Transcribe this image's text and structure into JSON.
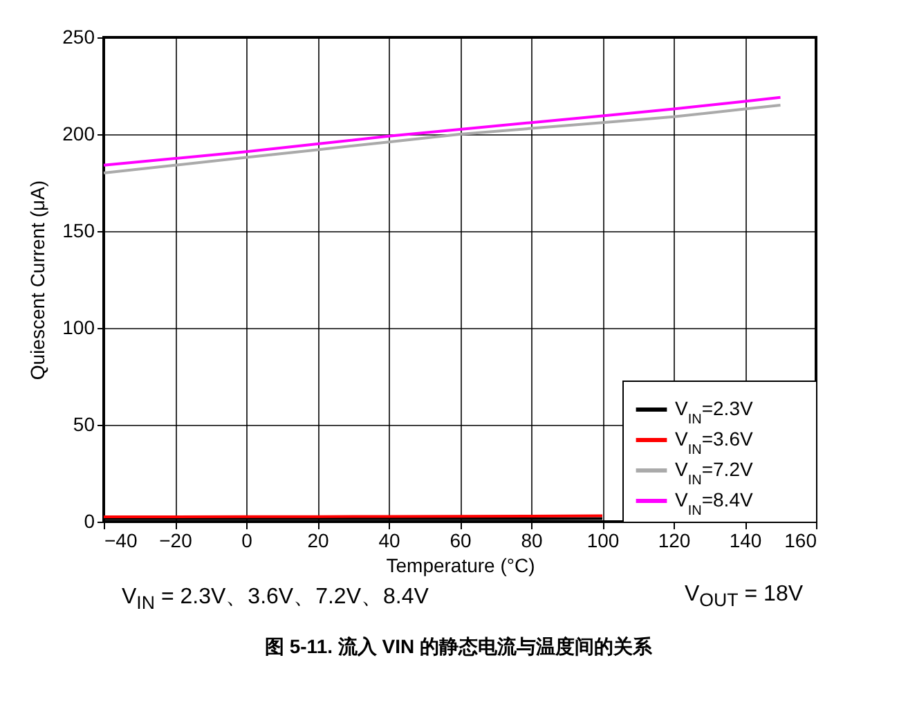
{
  "chart_data": {
    "type": "line",
    "title": "图 5-11. 流入 VIN 的静态电流与温度间的关系",
    "xlabel": "Temperature (°C)",
    "ylabel": "Quiescent Current (μA)",
    "x": [
      -40,
      -20,
      0,
      20,
      40,
      60,
      80,
      100,
      120,
      140,
      150
    ],
    "series": [
      {
        "name": "V$_{IN}$=2.3V",
        "color": "#000000",
        "values": [
          1.5,
          1.5,
          1.5,
          1.5,
          1.5,
          1.5,
          1.5,
          1.6,
          null,
          null,
          null
        ]
      },
      {
        "name": "V$_{IN}$=3.6V",
        "color": "#ff0000",
        "values": [
          2.5,
          2.5,
          2.6,
          2.6,
          2.7,
          2.8,
          2.9,
          3,
          null,
          null,
          null
        ]
      },
      {
        "name": "V$_{IN}$=7.2V",
        "color": "#aaaaaa",
        "values": [
          180,
          184,
          188,
          192,
          196,
          200,
          203,
          206,
          209,
          213,
          215
        ]
      },
      {
        "name": "V$_{IN}$=8.4V",
        "color": "#ff00ff",
        "values": [
          184,
          187.5,
          191,
          195,
          199,
          202.5,
          206,
          209.5,
          213,
          217,
          219
        ]
      }
    ],
    "xlim": [
      -40,
      160
    ],
    "xticks": [
      -40,
      -20,
      0,
      20,
      40,
      60,
      80,
      100,
      120,
      140,
      160
    ],
    "ylim": [
      0,
      250
    ],
    "yticks": [
      0,
      50,
      100,
      150,
      200,
      250
    ],
    "grid": true,
    "legend": "bottom right",
    "line_style": "solid",
    "annotations": [
      "V$_{IN}$ = 2.3V、3.6V、7.2V、8.4V",
      "V$_{OUT}$ = 18V"
    ]
  }
}
